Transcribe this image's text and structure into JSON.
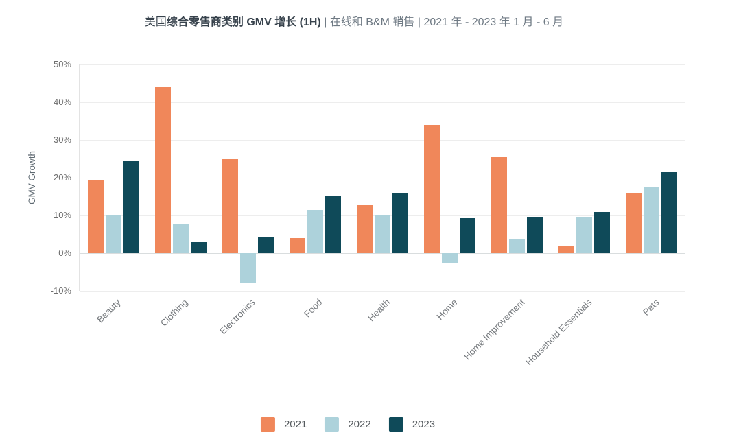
{
  "header": {
    "title_prefix": "美国",
    "title_main": "综合零售商类别 GMV 增长 (1H)",
    "title_suffix": " | 在线和 B&M 销售 | 2021 年 - 2023 年 1 月 - 6 月"
  },
  "chart_data": {
    "type": "bar",
    "title": "美国综合零售商类别 GMV 增长 (1H) | 在线和 B&M 销售 | 2021 年 - 2023 年 1 月 - 6 月",
    "xlabel": "",
    "ylabel": "GMV Growth",
    "categories": [
      "Beauty",
      "Clothing",
      "Electronics",
      "Food",
      "Health",
      "Home",
      "Home Improvement",
      "Household Essentials",
      "Pets"
    ],
    "series": [
      {
        "name": "2021",
        "color": "#F0875A",
        "values": [
          19.5,
          44,
          25,
          4,
          12.8,
          34,
          25.5,
          2,
          16
        ]
      },
      {
        "name": "2022",
        "color": "#ADD2DB",
        "values": [
          10.2,
          7.7,
          -8,
          11.5,
          10.2,
          -2.6,
          3.7,
          9.5,
          17.5
        ]
      },
      {
        "name": "2023",
        "color": "#0F4A59",
        "values": [
          24.3,
          3,
          4.3,
          15.2,
          15.8,
          9.3,
          9.5,
          11,
          21.5
        ]
      }
    ],
    "yticks": [
      "50%",
      "40%",
      "30%",
      "20%",
      "10%",
      "0%",
      "-10%"
    ],
    "ylim": [
      -10,
      50
    ],
    "grid": true,
    "legend_position": "bottom",
    "legend_labels": [
      "2021",
      "2022",
      "2023"
    ]
  },
  "colors": {
    "background": "#FFFFFF",
    "gridline": "#EDEDED",
    "zero_line": "#D9DDDE",
    "axis_line": "#E3E3E3",
    "tick_text": "#6E6E6E",
    "category_text": "#75797D",
    "series_2021": "#F0875A",
    "series_2022": "#ADD2DB",
    "series_2023": "#0F4A59"
  }
}
